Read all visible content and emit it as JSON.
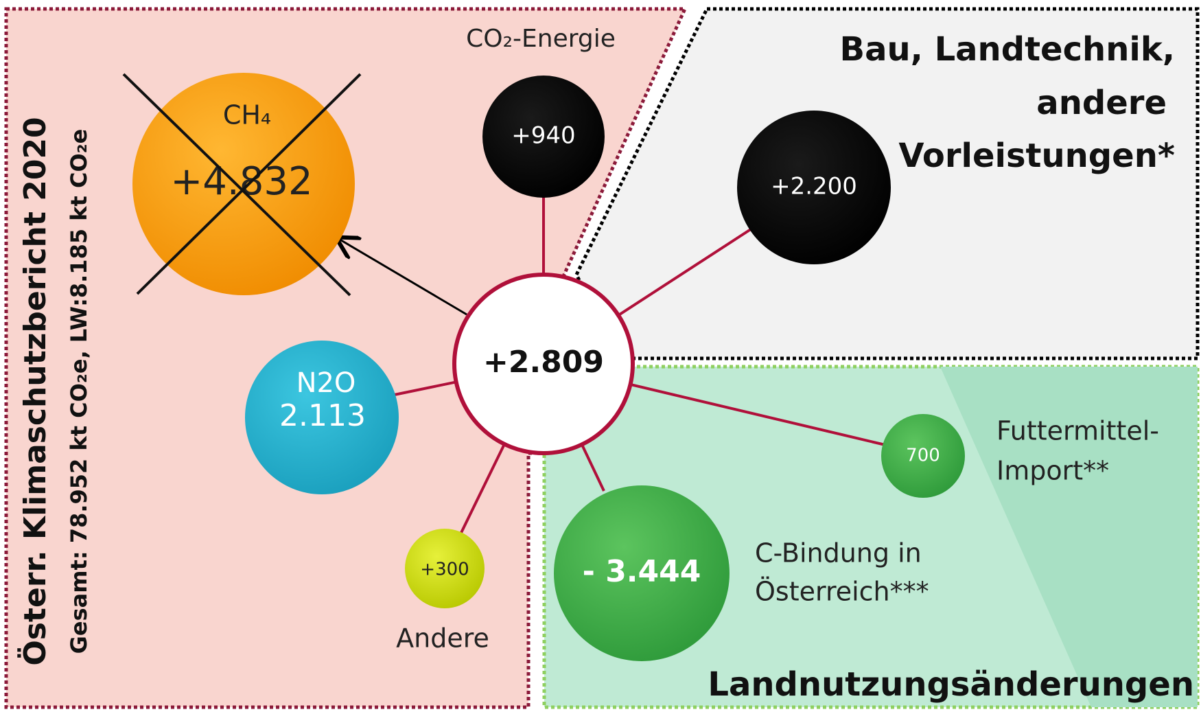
{
  "left_panel": {
    "title": "Österr. Klimaschutzbericht 2020",
    "subtitle": "Gesamt: 78.952 kt CO₂e, LW:8.185 kt CO₂e"
  },
  "top_right_panel": {
    "lines": [
      "Bau, Landtechnik,",
      "andere",
      "Vorleistungen*"
    ]
  },
  "bottom_right_panel": {
    "title": "Landnutzungsänderungen"
  },
  "nodes": {
    "center": {
      "value": "+2.809"
    },
    "ch4": {
      "label": "CH₄",
      "value": "+4.832"
    },
    "co2_energy": {
      "label": "CO₂-Energie",
      "value": "+940"
    },
    "construction": {
      "value": "+2.200"
    },
    "n2o": {
      "label": "N2O",
      "value": "2.113"
    },
    "other": {
      "label": "Andere",
      "value": "+300"
    },
    "c_binding": {
      "label_lines": [
        "C-Bindung in",
        "Österreich***"
      ],
      "value": "- 3.444"
    },
    "feed_import": {
      "label_lines": [
        "Futtermittel-",
        "Import**"
      ],
      "value": "700"
    }
  }
}
